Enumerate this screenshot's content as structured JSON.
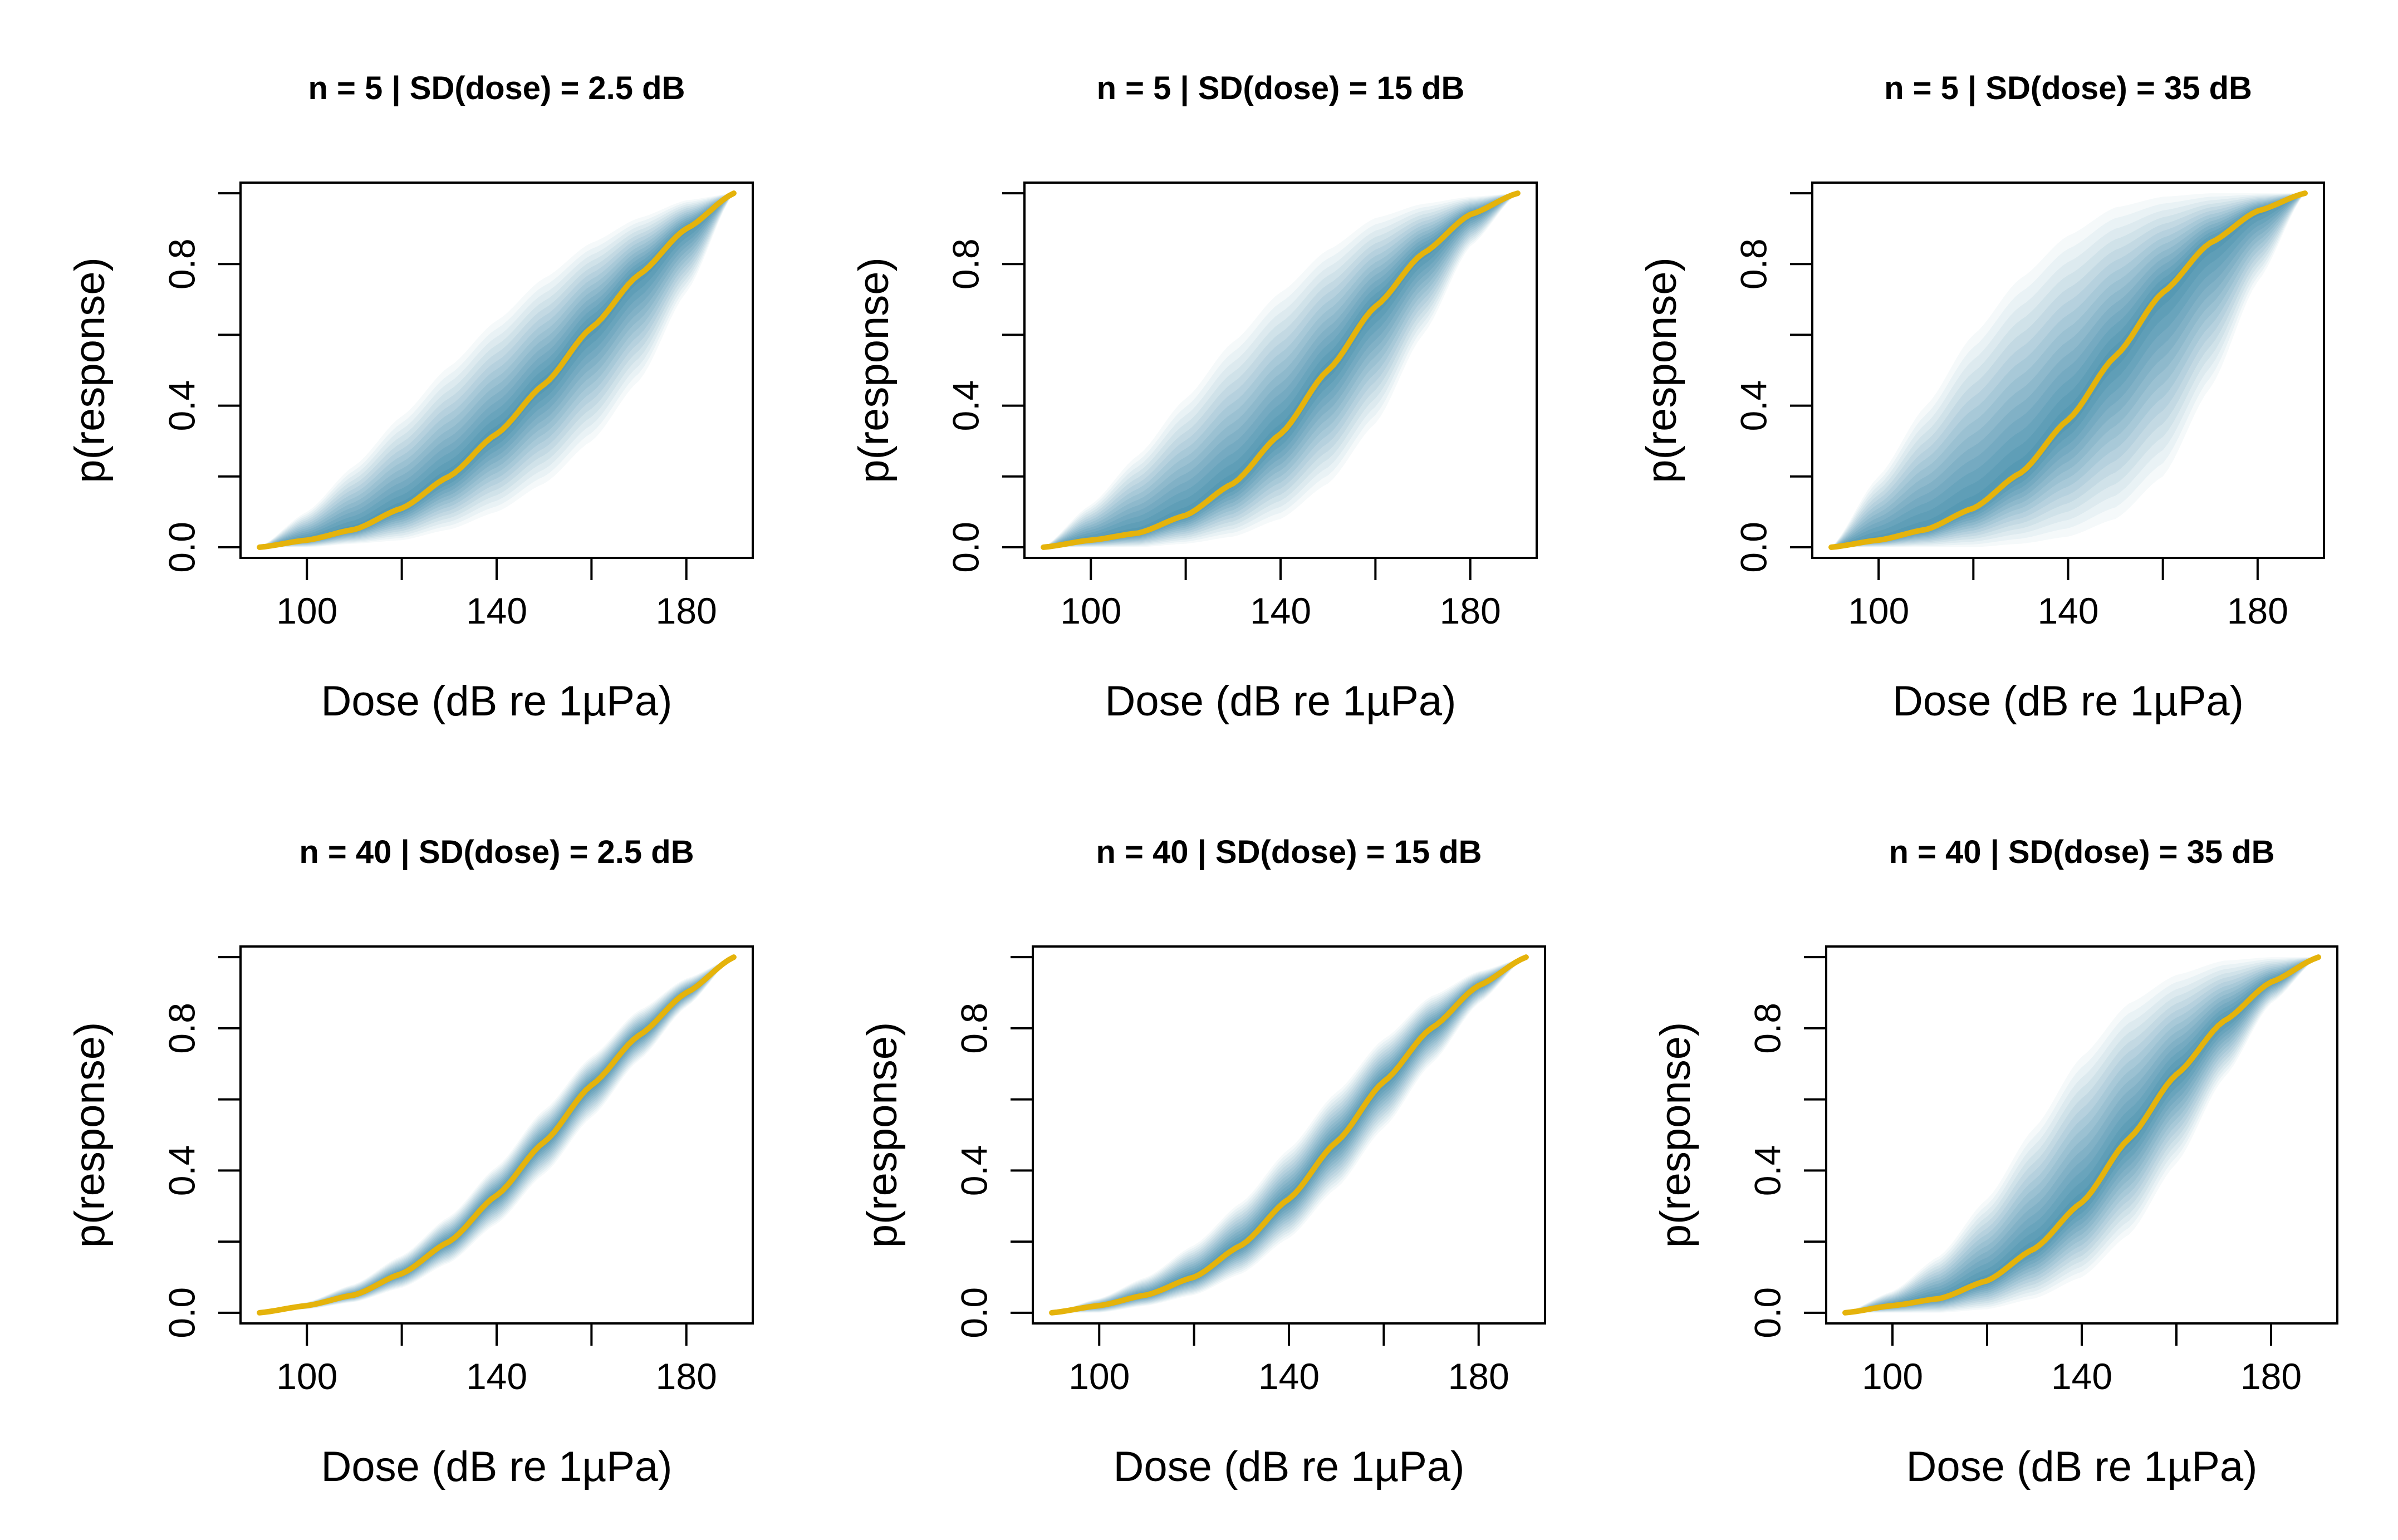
{
  "figure": {
    "colors": {
      "median_curve": "#E5B30B",
      "band": "#0E6E96",
      "frame": "#000000",
      "background": "#FFFFFF"
    }
  },
  "chart_data": [
    {
      "type": "line",
      "title": "n = 5 | SD(dose) = 2.5 dB",
      "xlabel": "Dose (dB re 1µPa)",
      "ylabel": "p(response)",
      "xlim": [
        86,
        194
      ],
      "ylim": [
        -0.03,
        1.03
      ],
      "xticks": [
        100,
        120,
        140,
        160,
        180
      ],
      "xtick_labels": [
        "100",
        "",
        "140",
        "",
        "180"
      ],
      "yticks": [
        0.0,
        0.2,
        0.4,
        0.6,
        0.8,
        1.0
      ],
      "ytick_labels": [
        "0.0",
        "",
        "0.4",
        "",
        "0.8",
        ""
      ],
      "grid": false,
      "series": [
        {
          "role": "median",
          "color": "#E5B30B",
          "x": [
            90,
            100,
            110,
            120,
            130,
            140,
            150,
            160,
            170,
            180,
            190
          ],
          "y": [
            0.0,
            0.02,
            0.05,
            0.11,
            0.2,
            0.32,
            0.46,
            0.62,
            0.77,
            0.9,
            1.0
          ]
        },
        {
          "role": "band",
          "color": "#0E6E96",
          "x": [
            90,
            100,
            110,
            120,
            130,
            140,
            150,
            160,
            170,
            180,
            190
          ],
          "lower": [
            0.0,
            0.0,
            0.01,
            0.02,
            0.05,
            0.1,
            0.18,
            0.3,
            0.47,
            0.72,
            1.0
          ],
          "upper": [
            0.0,
            0.1,
            0.23,
            0.37,
            0.51,
            0.64,
            0.76,
            0.86,
            0.93,
            0.98,
            1.0
          ]
        }
      ]
    },
    {
      "type": "line",
      "title": "n = 5 | SD(dose) = 15 dB",
      "xlabel": "Dose (dB re 1µPa)",
      "ylabel": "p(response)",
      "xlim": [
        86,
        194
      ],
      "ylim": [
        -0.03,
        1.03
      ],
      "xticks": [
        100,
        120,
        140,
        160,
        180
      ],
      "xtick_labels": [
        "100",
        "",
        "140",
        "",
        "180"
      ],
      "yticks": [
        0.0,
        0.2,
        0.4,
        0.6,
        0.8,
        1.0
      ],
      "ytick_labels": [
        "0.0",
        "",
        "0.4",
        "",
        "0.8",
        ""
      ],
      "grid": false,
      "series": [
        {
          "role": "median",
          "color": "#E5B30B",
          "x": [
            90,
            100,
            110,
            120,
            130,
            140,
            150,
            160,
            170,
            180,
            190
          ],
          "y": [
            0.0,
            0.02,
            0.04,
            0.09,
            0.18,
            0.32,
            0.5,
            0.68,
            0.83,
            0.94,
            1.0
          ]
        },
        {
          "role": "band",
          "color": "#0E6E96",
          "x": [
            90,
            100,
            110,
            120,
            130,
            140,
            150,
            160,
            170,
            180,
            190
          ],
          "lower": [
            0.0,
            0.0,
            0.0,
            0.01,
            0.03,
            0.08,
            0.18,
            0.35,
            0.6,
            0.85,
            1.0
          ],
          "upper": [
            0.0,
            0.12,
            0.26,
            0.42,
            0.58,
            0.72,
            0.84,
            0.93,
            0.97,
            0.99,
            1.0
          ]
        }
      ]
    },
    {
      "type": "line",
      "title": "n = 5 | SD(dose) = 35 dB",
      "xlabel": "Dose (dB re 1µPa)",
      "ylabel": "p(response)",
      "xlim": [
        86,
        194
      ],
      "ylim": [
        -0.03,
        1.03
      ],
      "xticks": [
        100,
        120,
        140,
        160,
        180
      ],
      "xtick_labels": [
        "100",
        "",
        "140",
        "",
        "180"
      ],
      "yticks": [
        0.0,
        0.2,
        0.4,
        0.6,
        0.8,
        1.0
      ],
      "ytick_labels": [
        "0.0",
        "",
        "0.4",
        "",
        "0.8",
        ""
      ],
      "grid": false,
      "series": [
        {
          "role": "median",
          "color": "#E5B30B",
          "x": [
            90,
            100,
            110,
            120,
            130,
            140,
            150,
            160,
            170,
            180,
            190
          ],
          "y": [
            0.0,
            0.02,
            0.05,
            0.11,
            0.21,
            0.36,
            0.54,
            0.72,
            0.86,
            0.95,
            1.0
          ]
        },
        {
          "role": "band",
          "color": "#0E6E96",
          "x": [
            90,
            100,
            110,
            120,
            130,
            140,
            150,
            160,
            170,
            180,
            190
          ],
          "lower": [
            0.0,
            0.0,
            0.0,
            0.0,
            0.01,
            0.03,
            0.08,
            0.2,
            0.45,
            0.75,
            1.0
          ],
          "upper": [
            0.0,
            0.2,
            0.4,
            0.6,
            0.76,
            0.88,
            0.96,
            0.99,
            1.0,
            1.0,
            1.0
          ]
        }
      ]
    },
    {
      "type": "line",
      "title": "n = 40 | SD(dose) = 2.5 dB",
      "xlabel": "Dose (dB re 1µPa)",
      "ylabel": "p(response)",
      "xlim": [
        86,
        194
      ],
      "ylim": [
        -0.03,
        1.03
      ],
      "xticks": [
        100,
        120,
        140,
        160,
        180
      ],
      "xtick_labels": [
        "100",
        "",
        "140",
        "",
        "180"
      ],
      "yticks": [
        0.0,
        0.2,
        0.4,
        0.6,
        0.8,
        1.0
      ],
      "ytick_labels": [
        "0.0",
        "",
        "0.4",
        "",
        "0.8",
        ""
      ],
      "grid": false,
      "series": [
        {
          "role": "median",
          "color": "#E5B30B",
          "x": [
            90,
            100,
            110,
            120,
            130,
            140,
            150,
            160,
            170,
            180,
            190
          ],
          "y": [
            0.0,
            0.02,
            0.05,
            0.11,
            0.2,
            0.33,
            0.48,
            0.64,
            0.78,
            0.9,
            1.0
          ]
        },
        {
          "role": "band",
          "color": "#0E6E96",
          "x": [
            90,
            100,
            110,
            120,
            130,
            140,
            150,
            160,
            170,
            180,
            190
          ],
          "lower": [
            0.0,
            0.01,
            0.03,
            0.07,
            0.14,
            0.25,
            0.39,
            0.55,
            0.71,
            0.86,
            1.0
          ],
          "upper": [
            0.0,
            0.03,
            0.08,
            0.16,
            0.27,
            0.41,
            0.57,
            0.72,
            0.85,
            0.94,
            1.0
          ]
        }
      ]
    },
    {
      "type": "line",
      "title": "n = 40 | SD(dose) = 15 dB",
      "xlabel": "Dose (dB re 1µPa)",
      "ylabel": "p(response)",
      "xlim": [
        86,
        194
      ],
      "ylim": [
        -0.03,
        1.03
      ],
      "xticks": [
        100,
        120,
        140,
        160,
        180
      ],
      "xtick_labels": [
        "100",
        "",
        "140",
        "",
        "180"
      ],
      "yticks": [
        0.0,
        0.2,
        0.4,
        0.6,
        0.8,
        1.0
      ],
      "ytick_labels": [
        "0.0",
        "",
        "0.4",
        "",
        "0.8",
        ""
      ],
      "grid": false,
      "series": [
        {
          "role": "median",
          "color": "#E5B30B",
          "x": [
            90,
            100,
            110,
            120,
            130,
            140,
            150,
            160,
            170,
            180,
            190
          ],
          "y": [
            0.0,
            0.02,
            0.05,
            0.1,
            0.19,
            0.32,
            0.48,
            0.65,
            0.8,
            0.92,
            1.0
          ]
        },
        {
          "role": "band",
          "color": "#0E6E96",
          "x": [
            90,
            100,
            110,
            120,
            130,
            140,
            150,
            160,
            170,
            180,
            190
          ],
          "lower": [
            0.0,
            0.0,
            0.02,
            0.05,
            0.11,
            0.21,
            0.35,
            0.52,
            0.7,
            0.87,
            1.0
          ],
          "upper": [
            0.0,
            0.04,
            0.1,
            0.19,
            0.31,
            0.46,
            0.62,
            0.77,
            0.89,
            0.96,
            1.0
          ]
        }
      ]
    },
    {
      "type": "line",
      "title": "n = 40 | SD(dose) = 35 dB",
      "xlabel": "Dose (dB re 1µPa)",
      "ylabel": "p(response)",
      "xlim": [
        86,
        194
      ],
      "ylim": [
        -0.03,
        1.03
      ],
      "xticks": [
        100,
        120,
        140,
        160,
        180
      ],
      "xtick_labels": [
        "100",
        "",
        "140",
        "",
        "180"
      ],
      "yticks": [
        0.0,
        0.2,
        0.4,
        0.6,
        0.8,
        1.0
      ],
      "ytick_labels": [
        "0.0",
        "",
        "0.4",
        "",
        "0.8",
        ""
      ],
      "grid": false,
      "series": [
        {
          "role": "median",
          "color": "#E5B30B",
          "x": [
            90,
            100,
            110,
            120,
            130,
            140,
            150,
            160,
            170,
            180,
            190
          ],
          "y": [
            0.0,
            0.02,
            0.04,
            0.09,
            0.18,
            0.31,
            0.49,
            0.67,
            0.82,
            0.93,
            1.0
          ]
        },
        {
          "role": "band",
          "color": "#0E6E96",
          "x": [
            90,
            100,
            110,
            120,
            130,
            140,
            150,
            160,
            170,
            180,
            190
          ],
          "lower": [
            0.0,
            0.0,
            0.0,
            0.01,
            0.04,
            0.1,
            0.22,
            0.42,
            0.66,
            0.87,
            1.0
          ],
          "upper": [
            0.0,
            0.06,
            0.16,
            0.32,
            0.52,
            0.72,
            0.87,
            0.95,
            0.99,
            1.0,
            1.0
          ]
        }
      ]
    }
  ]
}
